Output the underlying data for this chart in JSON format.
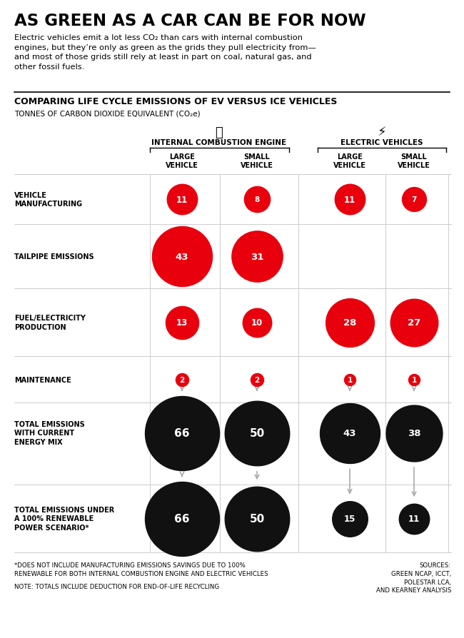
{
  "title": "AS GREEN AS A CAR CAN BE FOR NOW",
  "subtitle_parts": [
    "Electric vehicles emit a lot less CO",
    "2",
    " than cars with internal combustion\nengines, but they’re only as green as the grids they pull electricity from—\nand most of those grids still rely at least in part on coal, natural gas, and\nother fossil fuels."
  ],
  "chart_title": "COMPARING LIFE CYCLE EMISSIONS OF EV VERSUS ICE VEHICLES",
  "chart_subtitle_parts": [
    "TONNES OF CARBON DIOXIDE EQUIVALENT (CO",
    "2",
    "e)"
  ],
  "col_headers": [
    "LARGE\nVEHICLE",
    "SMALL\nVEHICLE",
    "LARGE\nVEHICLE",
    "SMALL\nVEHICLE"
  ],
  "group_headers": [
    "INTERNAL COMBUSTION ENGINE",
    "ELECTRIC VEHICLES"
  ],
  "row_labels": [
    "VEHICLE\nMANUFACTURING",
    "TAILPIPE EMISSIONS",
    "FUEL/ELECTRICITY\nPRODUCTION",
    "MAINTENANCE",
    "TOTAL EMISSIONS\nWITH CURRENT\nENERGY MIX",
    "TOTAL EMISSIONS UNDER\nA 100% RENEWABLE\nPOWER SCENARIO*"
  ],
  "values": [
    [
      11,
      8,
      11,
      7
    ],
    [
      43,
      31,
      0,
      0
    ],
    [
      13,
      10,
      28,
      27
    ],
    [
      2,
      2,
      1,
      1
    ],
    [
      66,
      50,
      43,
      38
    ],
    [
      66,
      50,
      15,
      11
    ]
  ],
  "circle_colors": [
    [
      "#e8000d",
      "#e8000d",
      "#e8000d",
      "#e8000d"
    ],
    [
      "#e8000d",
      "#e8000d",
      null,
      null
    ],
    [
      "#e8000d",
      "#e8000d",
      "#e8000d",
      "#e8000d"
    ],
    [
      "#e8000d",
      "#e8000d",
      "#e8000d",
      "#e8000d"
    ],
    [
      "#111111",
      "#111111",
      "#111111",
      "#111111"
    ],
    [
      "#111111",
      "#111111",
      "#111111",
      "#111111"
    ]
  ],
  "footnote1": "*DOES NOT INCLUDE MANUFACTURING EMISSIONS SAVINGS DUE TO 100%\nRENEWABLE FOR BOTH INTERNAL COMBUSTION ENGINE AND ELECTRIC VEHICLES",
  "footnote2": "NOTE: TOTALS INCLUDE DEDUCTION FOR END-OF-LIFE RECYCLING",
  "sources": "SOURCES:\nGREEN NCAP, ICCT,\nPOLESTAR LCA,\nAND KEARNEY ANALYSIS",
  "max_value": 66,
  "background_color": "#ffffff",
  "red_color": "#e8000d",
  "black_color": "#111111",
  "gray_color": "#aaaaaa",
  "grid_color": "#cccccc"
}
